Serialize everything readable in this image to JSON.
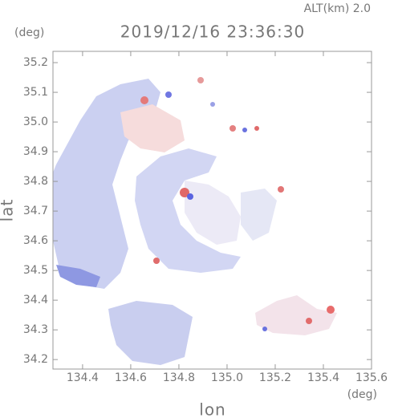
{
  "header": {
    "altitude": "ALT(km) 2.0",
    "timestamp": "2019/12/16 23:36:30"
  },
  "chart_data": {
    "type": "map",
    "x_label": "lon",
    "y_label": "lat",
    "x_unit": "(deg)",
    "y_unit": "(deg)",
    "xlim": [
      134.277,
      135.6
    ],
    "ylim": [
      34.168,
      35.238
    ],
    "xticks": [
      134.4,
      134.6,
      134.8,
      {
        "value": 135,
        "label": "135.0"
      },
      135.2,
      135.4,
      135.6
    ],
    "yticks": [
      34.2,
      34.3,
      34.4,
      34.5,
      34.6,
      34.7,
      34.8,
      34.9,
      {
        "value": 35,
        "label": "35.0"
      },
      35.1,
      35.2
    ]
  }
}
